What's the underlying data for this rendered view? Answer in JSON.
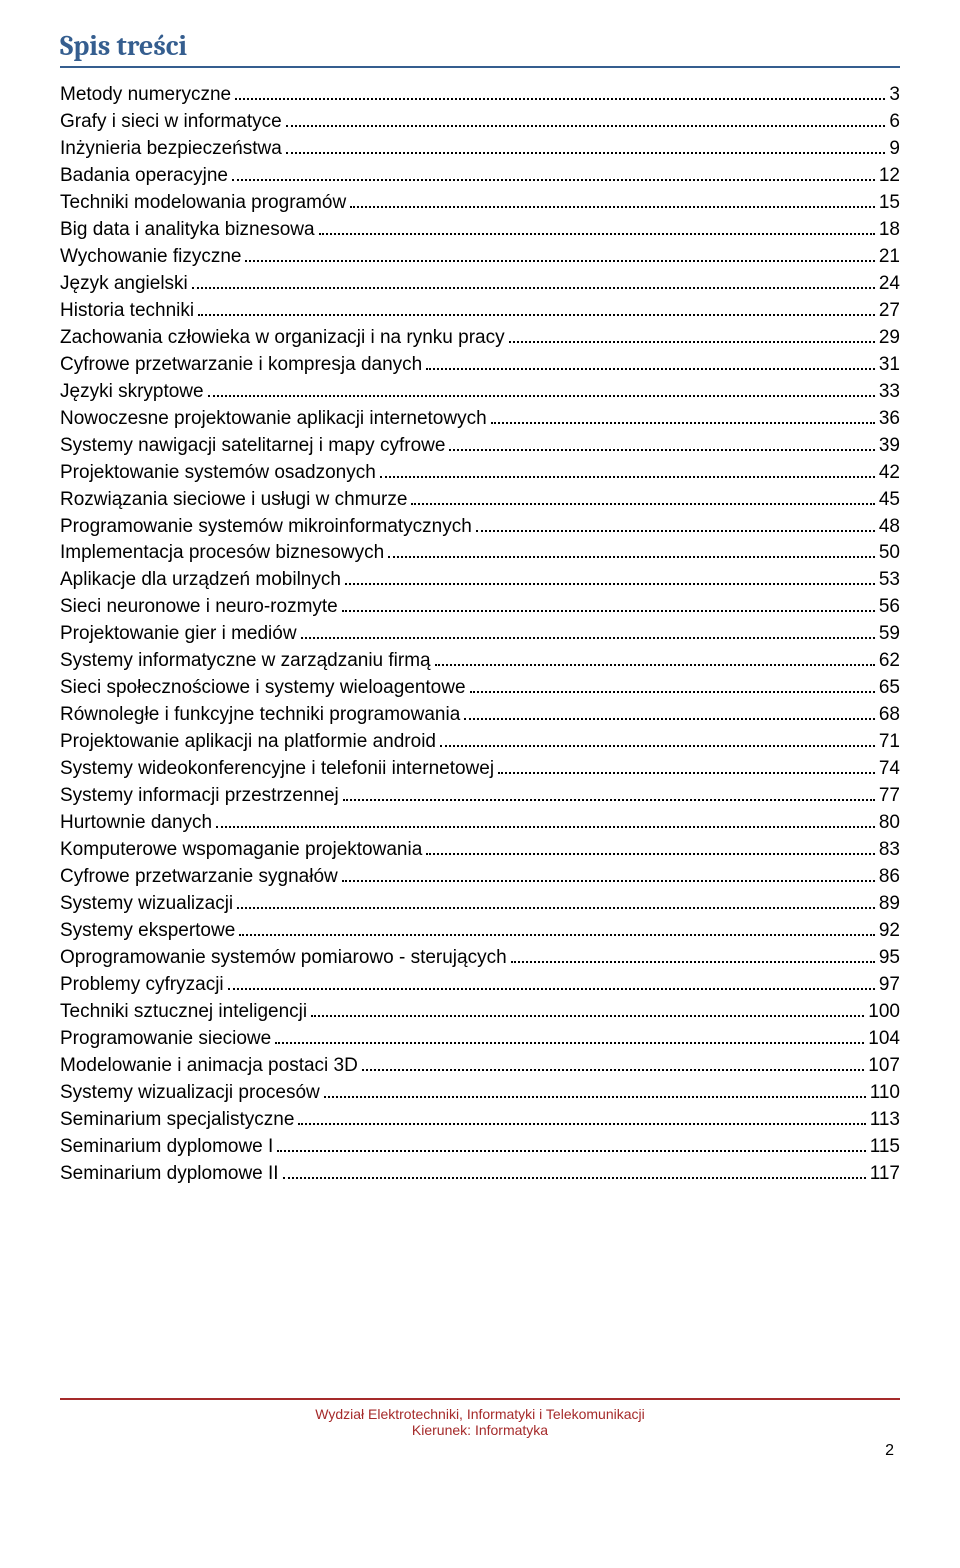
{
  "title": "Spis treści",
  "title_color": "#355e8f",
  "title_fontsize": 28,
  "body_fontsize": 19,
  "dot_color": "#000000",
  "text_color": "#000000",
  "footer": {
    "rule_color": "#a52a2a",
    "line1": "Wydział Elektrotechniki, Informatyki i Telekomunikacji",
    "line2": "Kierunek: Informatyka",
    "page_number": "2",
    "text_color": "#a52a2a",
    "fontsize": 14
  },
  "entries": [
    {
      "label": "Metody numeryczne",
      "page": "3"
    },
    {
      "label": "Grafy i sieci w informatyce",
      "page": "6"
    },
    {
      "label": "Inżynieria bezpieczeństwa",
      "page": "9"
    },
    {
      "label": "Badania operacyjne",
      "page": "12"
    },
    {
      "label": "Techniki modelowania programów",
      "page": "15"
    },
    {
      "label": "Big data i analityka biznesowa",
      "page": "18"
    },
    {
      "label": "Wychowanie fizyczne",
      "page": "21"
    },
    {
      "label": "Język angielski",
      "page": "24"
    },
    {
      "label": "Historia techniki",
      "page": "27"
    },
    {
      "label": "Zachowania człowieka w organizacji  i na rynku pracy",
      "page": "29"
    },
    {
      "label": "Cyfrowe przetwarzanie i kompresja danych",
      "page": "31"
    },
    {
      "label": "Języki skryptowe",
      "page": "33"
    },
    {
      "label": "Nowoczesne projektowanie aplikacji internetowych",
      "page": "36"
    },
    {
      "label": "Systemy nawigacji satelitarnej i mapy cyfrowe",
      "page": "39"
    },
    {
      "label": "Projektowanie systemów osadzonych",
      "page": "42"
    },
    {
      "label": "Rozwiązania sieciowe i usługi w chmurze",
      "page": "45"
    },
    {
      "label": "Programowanie systemów mikroinformatycznych",
      "page": "48"
    },
    {
      "label": "Implementacja procesów biznesowych",
      "page": "50"
    },
    {
      "label": "Aplikacje dla urządzeń mobilnych",
      "page": "53"
    },
    {
      "label": "Sieci neuronowe i neuro-rozmyte",
      "page": "56"
    },
    {
      "label": "Projektowanie gier i mediów",
      "page": "59"
    },
    {
      "label": "Systemy informatyczne w zarządzaniu firmą",
      "page": "62"
    },
    {
      "label": "Sieci społecznościowe i systemy wieloagentowe",
      "page": "65"
    },
    {
      "label": "Równoległe i funkcyjne techniki programowania",
      "page": "68"
    },
    {
      "label": "Projektowanie aplikacji na platformie android",
      "page": "71"
    },
    {
      "label": "Systemy wideokonferencyjne i telefonii internetowej",
      "page": "74"
    },
    {
      "label": "Systemy informacji przestrzennej",
      "page": "77"
    },
    {
      "label": "Hurtownie danych",
      "page": "80"
    },
    {
      "label": "Komputerowe wspomaganie projektowania",
      "page": "83"
    },
    {
      "label": "Cyfrowe przetwarzanie sygnałów",
      "page": "86"
    },
    {
      "label": "Systemy wizualizacji",
      "page": "89"
    },
    {
      "label": "Systemy ekspertowe",
      "page": "92"
    },
    {
      "label": "Oprogramowanie systemów pomiarowo - sterujących",
      "page": "95"
    },
    {
      "label": "Problemy cyfryzacji",
      "page": "97"
    },
    {
      "label": "Techniki sztucznej inteligencji",
      "page": "100"
    },
    {
      "label": "Programowanie sieciowe",
      "page": "104"
    },
    {
      "label": "Modelowanie i animacja postaci 3D",
      "page": "107"
    },
    {
      "label": "Systemy wizualizacji procesów",
      "page": "110"
    },
    {
      "label": "Seminarium specjalistyczne",
      "page": "113"
    },
    {
      "label": "Seminarium dyplomowe I",
      "page": "115"
    },
    {
      "label": "Seminarium dyplomowe II",
      "page": "117"
    }
  ]
}
